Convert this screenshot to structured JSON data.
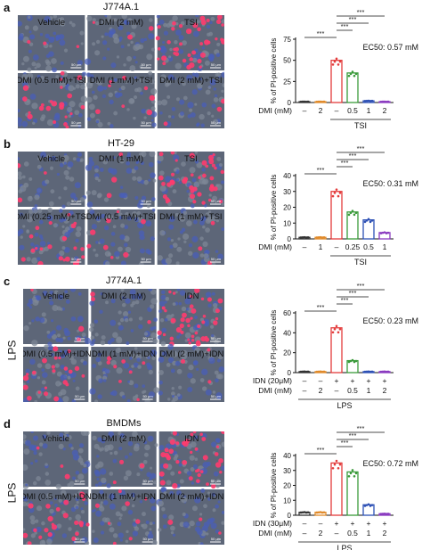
{
  "panels": [
    {
      "letter": "a",
      "title": "J774A.1",
      "side_label": "",
      "tiles": [
        "Vehicle",
        "DMI (2 mM)",
        "TSI",
        "DMI (0.5 mM)+TSI",
        "DMI (1 mM)+TSI",
        "DMI (2 mM)+TSI"
      ],
      "ec50": "EC50: 0.57 mM",
      "ylabel": "% of PI-positive cells",
      "xrows": [
        {
          "label": "DMI (mM)",
          "values": [
            "–",
            "2",
            "–",
            "0.5",
            "1",
            "2"
          ]
        }
      ],
      "group_label": "TSI",
      "group_span": [
        2,
        5
      ],
      "ymax": 75,
      "yticks": [
        "0",
        "25",
        "50",
        "75"
      ],
      "bars": [
        1,
        1,
        50,
        35,
        2,
        1
      ],
      "sig": [
        "***",
        "***",
        "***",
        "***"
      ]
    },
    {
      "letter": "b",
      "title": "HT-29",
      "side_label": "",
      "tiles": [
        "Vehicle",
        "DMI (1 mM)",
        "TSI",
        "DMI (0.25 mM)+TSI",
        "DMI (0.5 mM)+TSI",
        "DMI (1 mM)+TSI"
      ],
      "ec50": "EC50: 0.31 mM",
      "ylabel": "% of PI-positive cells",
      "xrows": [
        {
          "label": "DMI (mM)",
          "values": [
            "–",
            "1",
            "–",
            "0.25",
            "0.5",
            "1"
          ]
        }
      ],
      "group_label": "TSI",
      "group_span": [
        2,
        5
      ],
      "ymax": 40,
      "yticks": [
        "0",
        "10",
        "20",
        "30",
        "40"
      ],
      "bars": [
        1,
        1,
        30,
        17,
        12,
        4
      ],
      "sig": [
        "***",
        "***",
        "***",
        "***"
      ]
    },
    {
      "letter": "c",
      "title": "J774A.1",
      "side_label": "LPS",
      "tiles": [
        "Vehicle",
        "DMI (2 mM)",
        "IDN",
        "DMI (0.5 mM)+IDN",
        "DMI (1 mM)+IDN",
        "DMI (2 mM)+IDN"
      ],
      "ec50": "EC50: 0.23 mM",
      "ylabel": "% of PI-positive cells",
      "xrows": [
        {
          "label": "IDN (20μM)",
          "values": [
            "–",
            "–",
            "+",
            "+",
            "+",
            "+"
          ]
        },
        {
          "label": "DMI (mM)",
          "values": [
            "–",
            "2",
            "–",
            "0.5",
            "1",
            "2"
          ]
        }
      ],
      "group_label": "LPS",
      "group_span": [
        0,
        5
      ],
      "ymax": 60,
      "yticks": [
        "0",
        "20",
        "40",
        "60"
      ],
      "bars": [
        1,
        1,
        45,
        12,
        1,
        1
      ],
      "sig": [
        "***",
        "***",
        "***",
        "***"
      ]
    },
    {
      "letter": "d",
      "title": "BMDMs",
      "side_label": "LPS",
      "tiles": [
        "Vehicle",
        "DMI (2 mM)",
        "IDN",
        "DMI (0.5 mM)+IDN",
        "DMI (1 mM)+IDN",
        "DMI (2 mM)+IDN"
      ],
      "ec50": "EC50: 0.72 mM",
      "ylabel": "% of PI-positive cells",
      "xrows": [
        {
          "label": "IDN (30μM)",
          "values": [
            "–",
            "–",
            "+",
            "+",
            "+",
            "+"
          ]
        },
        {
          "label": "DMI (mM)",
          "values": [
            "–",
            "2",
            "–",
            "0.5",
            "1",
            "2"
          ]
        }
      ],
      "group_label": "LPS",
      "group_span": [
        0,
        5
      ],
      "ymax": 40,
      "yticks": [
        "0",
        "10",
        "20",
        "30",
        "40"
      ],
      "bars": [
        2,
        2,
        35,
        29,
        7,
        1
      ],
      "sig": [
        "***",
        "***",
        "***",
        "***"
      ]
    }
  ],
  "scale_bar": "50 μm",
  "bar_colors": [
    "#333333",
    "#e08a2a",
    "#e33b3b",
    "#3a9a3a",
    "#2d50b5",
    "#8a3ac0"
  ],
  "chart_data": [
    {
      "type": "bar",
      "title": "",
      "xlabel": "",
      "ylabel": "% of PI-positive cells",
      "ylim": [
        0,
        75
      ],
      "categories": [
        "–",
        "2",
        "–",
        "0.5",
        "1",
        "2"
      ],
      "values": [
        1,
        1,
        50,
        35,
        2,
        1
      ]
    },
    {
      "type": "bar",
      "title": "",
      "xlabel": "",
      "ylabel": "% of PI-positive cells",
      "ylim": [
        0,
        40
      ],
      "categories": [
        "–",
        "1",
        "–",
        "0.25",
        "0.5",
        "1"
      ],
      "values": [
        1,
        1,
        30,
        17,
        12,
        4
      ]
    },
    {
      "type": "bar",
      "title": "",
      "xlabel": "",
      "ylabel": "% of PI-positive cells",
      "ylim": [
        0,
        60
      ],
      "categories": [
        "–",
        "2",
        "–",
        "0.5",
        "1",
        "2"
      ],
      "values": [
        1,
        1,
        45,
        12,
        1,
        1
      ]
    },
    {
      "type": "bar",
      "title": "",
      "xlabel": "",
      "ylabel": "% of PI-positive cells",
      "ylim": [
        0,
        40
      ],
      "categories": [
        "–",
        "2",
        "–",
        "0.5",
        "1",
        "2"
      ],
      "values": [
        2,
        2,
        35,
        29,
        7,
        1
      ]
    }
  ]
}
